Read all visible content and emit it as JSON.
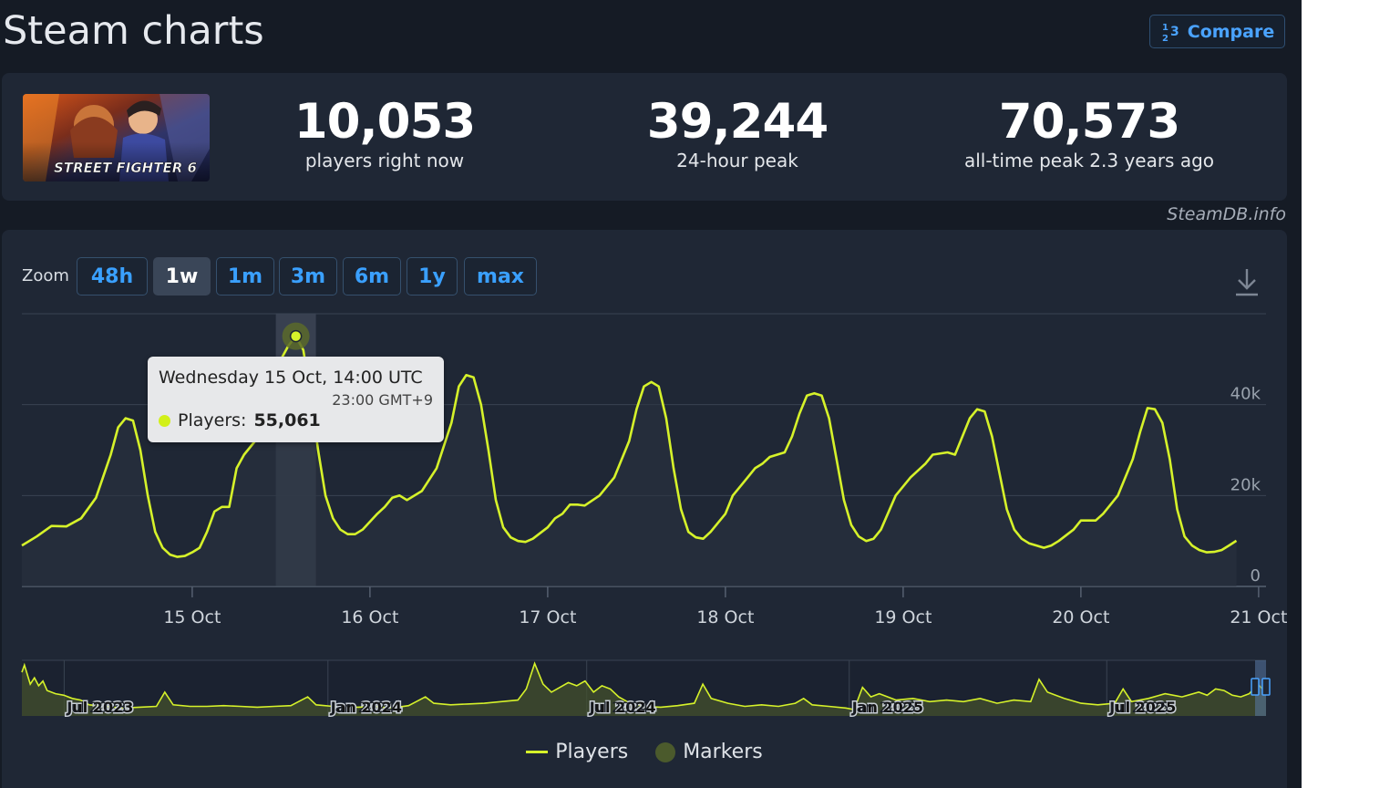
{
  "header": {
    "title": "Steam charts",
    "compare_label": "Compare"
  },
  "stats": {
    "current": {
      "value": "10,053",
      "label": "players right now"
    },
    "peak_24h": {
      "value": "39,244",
      "label": "24-hour peak"
    },
    "all_time": {
      "value": "70,573",
      "label": "all-time peak 2.3 years ago"
    }
  },
  "game": {
    "logo_text": "STREET FIGHTER 6"
  },
  "watermark": "SteamDB.info",
  "zoom": {
    "label": "Zoom",
    "options": [
      "48h",
      "1w",
      "1m",
      "3m",
      "6m",
      "1y",
      "max"
    ],
    "active": "1w"
  },
  "tooltip": {
    "title": "Wednesday 15 Oct, 14:00 UTC",
    "subtitle": "23:00 GMT+9",
    "series_label": "Players:",
    "series_value": "55,061"
  },
  "legend": [
    {
      "name": "Players",
      "color": "#d6f22a"
    },
    {
      "name": "Markers",
      "color": "#4b5a2c"
    }
  ],
  "colors": {
    "line": "#d6f22a",
    "background": "#151b25",
    "panel": "#1f2735",
    "accent": "#3aa0ff"
  },
  "chart_data": {
    "type": "line",
    "title": "",
    "xlabel": "",
    "ylabel": "",
    "x_unit": "hours since 14 Oct 00:00 UTC",
    "x_ticks": [
      {
        "label": "15 Oct",
        "x": 24
      },
      {
        "label": "16 Oct",
        "x": 48
      },
      {
        "label": "17 Oct",
        "x": 72
      },
      {
        "label": "18 Oct",
        "x": 96
      },
      {
        "label": "19 Oct",
        "x": 120
      },
      {
        "label": "20 Oct",
        "x": 144
      },
      {
        "label": "21 Oct",
        "x": 168
      }
    ],
    "y_ticks": [
      {
        "label": "0",
        "value": 0
      },
      {
        "label": "20k",
        "value": 20000
      },
      {
        "label": "40k",
        "value": 40000
      }
    ],
    "xlim": [
      -23,
      145
    ],
    "ylim": [
      0,
      60000
    ],
    "highlight_x": 14,
    "grid": true,
    "series": [
      {
        "name": "Players",
        "points": [
          [
            -23,
            9000
          ],
          [
            -21,
            11000
          ],
          [
            -19,
            13300
          ],
          [
            -17,
            13200
          ],
          [
            -15,
            15000
          ],
          [
            -13,
            19500
          ],
          [
            -11,
            29000
          ],
          [
            -10,
            35000
          ],
          [
            -9,
            37000
          ],
          [
            -8,
            36500
          ],
          [
            -7,
            30000
          ],
          [
            -6,
            20000
          ],
          [
            -5,
            12000
          ],
          [
            -4,
            8500
          ],
          [
            -3,
            7000
          ],
          [
            -2,
            6500
          ],
          [
            -1,
            6700
          ],
          [
            0,
            7500
          ],
          [
            1,
            8500
          ],
          [
            2,
            12000
          ],
          [
            3,
            16500
          ],
          [
            4,
            17500
          ],
          [
            5,
            17500
          ],
          [
            6,
            26000
          ],
          [
            7,
            29000
          ],
          [
            8,
            31000
          ],
          [
            9,
            33000
          ],
          [
            10,
            37000
          ],
          [
            11,
            44000
          ],
          [
            12,
            50000
          ],
          [
            13,
            53000
          ],
          [
            14,
            55061
          ],
          [
            15,
            52000
          ],
          [
            16,
            42000
          ],
          [
            17,
            30000
          ],
          [
            18,
            20000
          ],
          [
            19,
            15000
          ],
          [
            20,
            12500
          ],
          [
            21,
            11500
          ],
          [
            22,
            11500
          ],
          [
            23,
            12500
          ],
          [
            25,
            16000
          ],
          [
            26,
            17500
          ],
          [
            27,
            19500
          ],
          [
            28,
            20000
          ],
          [
            29,
            19000
          ],
          [
            31,
            21000
          ],
          [
            33,
            26000
          ],
          [
            35,
            36000
          ],
          [
            36,
            44000
          ],
          [
            37,
            46500
          ],
          [
            38,
            46000
          ],
          [
            39,
            40000
          ],
          [
            40,
            30000
          ],
          [
            41,
            19000
          ],
          [
            42,
            13000
          ],
          [
            43,
            10800
          ],
          [
            44,
            10000
          ],
          [
            45,
            9800
          ],
          [
            46,
            10500
          ],
          [
            48,
            13000
          ],
          [
            49,
            15000
          ],
          [
            50,
            16000
          ],
          [
            51,
            18000
          ],
          [
            52,
            18000
          ],
          [
            53,
            17800
          ],
          [
            55,
            20000
          ],
          [
            57,
            24000
          ],
          [
            59,
            32000
          ],
          [
            60,
            39000
          ],
          [
            61,
            44000
          ],
          [
            62,
            45000
          ],
          [
            63,
            44000
          ],
          [
            64,
            37000
          ],
          [
            65,
            26000
          ],
          [
            66,
            17000
          ],
          [
            67,
            12000
          ],
          [
            68,
            10800
          ],
          [
            69,
            10500
          ],
          [
            70,
            12000
          ],
          [
            72,
            16000
          ],
          [
            73,
            20000
          ],
          [
            75,
            24000
          ],
          [
            76,
            26000
          ],
          [
            77,
            27000
          ],
          [
            78,
            28500
          ],
          [
            79,
            29000
          ],
          [
            80,
            29500
          ],
          [
            81,
            33000
          ],
          [
            82,
            38000
          ],
          [
            83,
            42000
          ],
          [
            84,
            42500
          ],
          [
            85,
            42000
          ],
          [
            86,
            37000
          ],
          [
            87,
            28000
          ],
          [
            88,
            19000
          ],
          [
            89,
            13500
          ],
          [
            90,
            11000
          ],
          [
            91,
            10000
          ],
          [
            92,
            10500
          ],
          [
            93,
            12500
          ],
          [
            95,
            20000
          ],
          [
            97,
            24000
          ],
          [
            99,
            27000
          ],
          [
            100,
            29000
          ],
          [
            102,
            29500
          ],
          [
            103,
            29000
          ],
          [
            104,
            33000
          ],
          [
            105,
            37000
          ],
          [
            106,
            39000
          ],
          [
            107,
            38500
          ],
          [
            108,
            33000
          ],
          [
            109,
            25000
          ],
          [
            110,
            17000
          ],
          [
            111,
            12500
          ],
          [
            112,
            10500
          ],
          [
            113,
            9500
          ],
          [
            114,
            9000
          ],
          [
            115,
            8500
          ],
          [
            116,
            9000
          ],
          [
            117,
            10000
          ],
          [
            119,
            12500
          ],
          [
            120,
            14500
          ],
          [
            121,
            14500
          ],
          [
            122,
            14500
          ],
          [
            123,
            16000
          ],
          [
            125,
            20000
          ],
          [
            127,
            28000
          ],
          [
            128,
            34000
          ],
          [
            129,
            39244
          ],
          [
            130,
            39000
          ],
          [
            131,
            36000
          ],
          [
            132,
            28000
          ],
          [
            133,
            17000
          ],
          [
            134,
            11000
          ],
          [
            135,
            9000
          ],
          [
            136,
            8000
          ],
          [
            137,
            7500
          ],
          [
            138,
            7600
          ],
          [
            139,
            8000
          ],
          [
            140,
            9000
          ],
          [
            141,
            10053
          ]
        ]
      }
    ],
    "navigator": {
      "range": [
        "May 2023",
        "Oct 2025"
      ],
      "ticks": [
        "Jul 2023",
        "Jan 2024",
        "Jul 2024",
        "Jan 2025",
        "Jul 2025"
      ],
      "points": [
        [
          0,
          55
        ],
        [
          0.3,
          64
        ],
        [
          1,
          40
        ],
        [
          1.5,
          48
        ],
        [
          2,
          38
        ],
        [
          2.5,
          44
        ],
        [
          3,
          32
        ],
        [
          4,
          28
        ],
        [
          5,
          26
        ],
        [
          6,
          22
        ],
        [
          7,
          20
        ],
        [
          8,
          14
        ],
        [
          10,
          12
        ],
        [
          12,
          10
        ],
        [
          14,
          11
        ],
        [
          16,
          12
        ],
        [
          17,
          30
        ],
        [
          18,
          14
        ],
        [
          20,
          12
        ],
        [
          22,
          12
        ],
        [
          24,
          13
        ],
        [
          26,
          12
        ],
        [
          28,
          11
        ],
        [
          30,
          12
        ],
        [
          32,
          13
        ],
        [
          34,
          24
        ],
        [
          35,
          14
        ],
        [
          37,
          12
        ],
        [
          40,
          11
        ],
        [
          42,
          12
        ],
        [
          44,
          10
        ],
        [
          46,
          13
        ],
        [
          48,
          24
        ],
        [
          49,
          16
        ],
        [
          51,
          14
        ],
        [
          53,
          15
        ],
        [
          55,
          16
        ],
        [
          57,
          18
        ],
        [
          59,
          20
        ],
        [
          60,
          34
        ],
        [
          61,
          66
        ],
        [
          62,
          40
        ],
        [
          63,
          30
        ],
        [
          65,
          42
        ],
        [
          66,
          38
        ],
        [
          67,
          44
        ],
        [
          68,
          30
        ],
        [
          69,
          38
        ],
        [
          70,
          34
        ],
        [
          71,
          24
        ],
        [
          72,
          18
        ],
        [
          74,
          12
        ],
        [
          76,
          11
        ],
        [
          78,
          13
        ],
        [
          80,
          16
        ],
        [
          81,
          40
        ],
        [
          82,
          22
        ],
        [
          84,
          16
        ],
        [
          86,
          12
        ],
        [
          88,
          14
        ],
        [
          90,
          12
        ],
        [
          92,
          16
        ],
        [
          93,
          22
        ],
        [
          94,
          14
        ],
        [
          96,
          12
        ],
        [
          98,
          10
        ],
        [
          99,
          8
        ],
        [
          100,
          36
        ],
        [
          101,
          24
        ],
        [
          102,
          28
        ],
        [
          104,
          20
        ],
        [
          106,
          22
        ],
        [
          108,
          18
        ],
        [
          110,
          20
        ],
        [
          112,
          18
        ],
        [
          114,
          22
        ],
        [
          116,
          16
        ],
        [
          118,
          20
        ],
        [
          120,
          18
        ],
        [
          121,
          46
        ],
        [
          122,
          30
        ],
        [
          124,
          22
        ],
        [
          126,
          16
        ],
        [
          128,
          14
        ],
        [
          130,
          16
        ],
        [
          131,
          34
        ],
        [
          132,
          18
        ],
        [
          134,
          22
        ],
        [
          136,
          28
        ],
        [
          138,
          24
        ],
        [
          140,
          30
        ],
        [
          141,
          26
        ],
        [
          142,
          34
        ],
        [
          143,
          32
        ],
        [
          144,
          26
        ],
        [
          145,
          24
        ],
        [
          146,
          28
        ],
        [
          147,
          40
        ],
        [
          148,
          30
        ]
      ]
    }
  }
}
